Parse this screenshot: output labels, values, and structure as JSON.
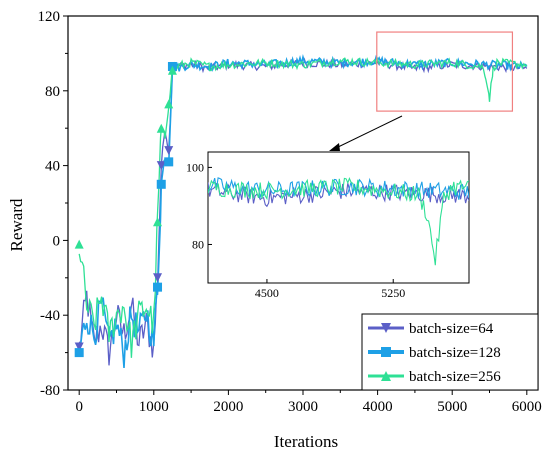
{
  "chart_data": {
    "type": "line",
    "title": "",
    "xlabel": "Iterations",
    "ylabel": "Reward",
    "xlim": [
      -150,
      6150
    ],
    "ylim": [
      -80,
      120
    ],
    "xticks": [
      "0",
      "1000",
      "2000",
      "3000",
      "4000",
      "5000",
      "6000"
    ],
    "yticks": [
      "-80",
      "-40",
      "0",
      "40",
      "80",
      "120"
    ],
    "grid": false,
    "legend_position": "bottom-right",
    "series": [
      {
        "name": "batch-size=64",
        "color": "#5b5fc7",
        "marker": "triangle-down",
        "x": [
          0,
          100,
          200,
          300,
          400,
          500,
          600,
          700,
          800,
          900,
          1000,
          1050,
          1100,
          1150,
          1200,
          1250,
          1300,
          1500,
          1750,
          2000,
          2500,
          3000,
          3500,
          4000,
          4500,
          5000,
          5500,
          6000
        ],
        "values": [
          -57,
          -30,
          -55,
          -45,
          -60,
          -40,
          -50,
          -35,
          -55,
          -45,
          -58,
          -20,
          40,
          60,
          48,
          92,
          93,
          94,
          92,
          94,
          93,
          95,
          94,
          95,
          92,
          94,
          93,
          92
        ]
      },
      {
        "name": "batch-size=128",
        "color": "#1ea0e6",
        "marker": "square",
        "x": [
          0,
          100,
          200,
          300,
          400,
          500,
          600,
          700,
          800,
          900,
          1000,
          1050,
          1100,
          1150,
          1200,
          1250,
          1300,
          1500,
          1750,
          2000,
          2500,
          3000,
          3500,
          4000,
          4500,
          5000,
          5500,
          6000
        ],
        "values": [
          -60,
          -40,
          -50,
          -35,
          -55,
          -45,
          -60,
          -40,
          -50,
          -38,
          -55,
          -25,
          30,
          45,
          42,
          93,
          92,
          94,
          93,
          95,
          94,
          96,
          95,
          96,
          94,
          95,
          94,
          93
        ]
      },
      {
        "name": "batch-size=256",
        "color": "#2ee095",
        "marker": "triangle-up",
        "x": [
          0,
          100,
          200,
          300,
          400,
          500,
          600,
          700,
          800,
          900,
          1000,
          1050,
          1100,
          1150,
          1200,
          1250,
          1300,
          1500,
          1750,
          2000,
          2500,
          3000,
          3500,
          4000,
          4500,
          5000,
          5400,
          5450,
          5500,
          5550,
          5600,
          6000
        ],
        "values": [
          -2,
          -35,
          -45,
          -30,
          -50,
          -40,
          -35,
          -55,
          -40,
          -35,
          -45,
          10,
          60,
          55,
          73,
          91,
          93,
          95,
          93,
          94,
          95,
          94,
          96,
          95,
          94,
          95,
          93,
          88,
          76,
          92,
          95,
          94
        ]
      }
    ],
    "inset": {
      "xticks": [
        "4500",
        "5250"
      ],
      "yticks": [
        "80",
        "100"
      ],
      "xlim": [
        4150,
        5700
      ],
      "ylim": [
        70,
        104
      ]
    }
  }
}
